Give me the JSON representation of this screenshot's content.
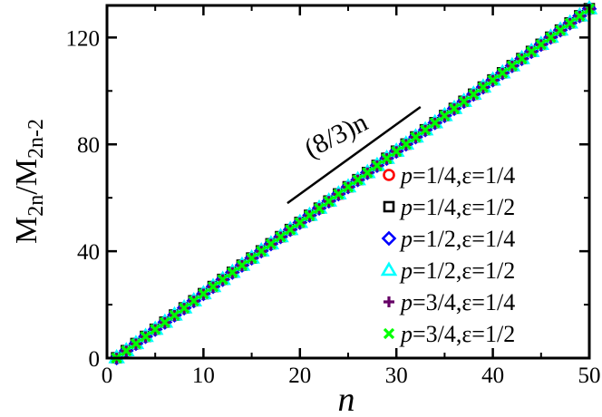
{
  "chart_data": {
    "type": "scatter",
    "xlabel": "n",
    "ylabel": {
      "base1": "M",
      "sub1": "2n",
      "sep": "/",
      "base2": "M",
      "sub2": "2n-2"
    },
    "xlim": [
      0,
      50
    ],
    "ylim": [
      0,
      132
    ],
    "x_ticks": [
      0,
      10,
      20,
      30,
      40,
      50
    ],
    "y_ticks": [
      0,
      40,
      80,
      120
    ],
    "grid": false,
    "legend_position": "right",
    "annotation": {
      "text": "(8/3)n",
      "line": {
        "x": [
          18.7,
          32.5
        ],
        "y": [
          58,
          94
        ]
      }
    },
    "x": [
      1,
      2,
      3,
      4,
      5,
      6,
      7,
      8,
      9,
      10,
      11,
      12,
      13,
      14,
      15,
      16,
      17,
      18,
      19,
      20,
      21,
      22,
      23,
      24,
      25,
      26,
      27,
      28,
      29,
      30,
      31,
      32,
      33,
      34,
      35,
      36,
      37,
      38,
      39,
      40,
      41,
      42,
      43,
      44,
      45,
      46,
      47,
      48,
      49,
      50
    ],
    "series": [
      {
        "name": "p=1/4,ε=1/4",
        "p": "p",
        "rest": "=1/4,ε=1/4",
        "marker": "circle",
        "color": "#ff0000",
        "slope": 2.6667,
        "intercept": -2.66
      },
      {
        "name": "p=1/4,ε=1/2",
        "p": "p",
        "rest": "=1/4,ε=1/2",
        "marker": "square",
        "color": "#000000",
        "slope": 2.6667,
        "intercept": -2.55
      },
      {
        "name": "p=1/2,ε=1/4",
        "p": "p",
        "rest": "=1/2,ε=1/4",
        "marker": "diamond",
        "color": "#0000ff",
        "slope": 2.6667,
        "intercept": -2.6
      },
      {
        "name": "p=1/2,ε=1/2",
        "p": "p",
        "rest": "=1/2,ε=1/2",
        "marker": "triangle",
        "color": "#00ffff",
        "slope": 2.6667,
        "intercept": -2.5
      },
      {
        "name": "p=3/4,ε=1/4",
        "p": "p",
        "rest": "=3/4,ε=1/4",
        "marker": "plus",
        "color": "#660066",
        "slope": 2.6667,
        "intercept": -2.7
      },
      {
        "name": "p=3/4,ε=1/2",
        "p": "p",
        "rest": "=3/4,ε=1/2",
        "marker": "x",
        "color": "#00ff00",
        "slope": 2.6667,
        "intercept": -2.62
      }
    ]
  }
}
